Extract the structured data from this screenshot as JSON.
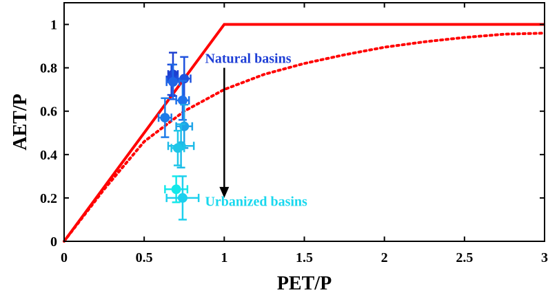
{
  "chart_data": {
    "type": "scatter",
    "title": "",
    "xlabel": "PET/P",
    "ylabel": "AET/P",
    "xlim": [
      0,
      3
    ],
    "ylim": [
      0,
      1.1
    ],
    "grid": false,
    "x_ticks": [
      "0",
      "0.5",
      "1",
      "1.5",
      "2",
      "2.5",
      "3"
    ],
    "y_ticks": [
      "0",
      "0.2",
      "0.4",
      "0.6",
      "0.8",
      "1"
    ],
    "curves": [
      {
        "style": "solid",
        "color": "#ff0000",
        "x": [
          0,
          1,
          3
        ],
        "y": [
          0,
          1,
          1
        ]
      },
      {
        "style": "dotted",
        "color": "#ff0000",
        "x": [
          0,
          0.25,
          0.5,
          0.75,
          1,
          1.25,
          1.5,
          1.75,
          2,
          2.25,
          2.5,
          2.75,
          3
        ],
        "y": [
          0,
          0.24,
          0.46,
          0.6,
          0.7,
          0.77,
          0.82,
          0.86,
          0.895,
          0.92,
          0.94,
          0.955,
          0.96
        ]
      }
    ],
    "points": [
      {
        "x": 0.68,
        "y": 0.77,
        "xerr": 0.03,
        "yerr": 0.1,
        "color": "#1d3fd0"
      },
      {
        "x": 0.67,
        "y": 0.745,
        "xerr": 0.03,
        "yerr": 0.07,
        "color": "#1e48d8"
      },
      {
        "x": 0.75,
        "y": 0.75,
        "xerr": 0.04,
        "yerr": 0.1,
        "color": "#1f52de"
      },
      {
        "x": 0.68,
        "y": 0.735,
        "xerr": 0.04,
        "yerr": 0.08,
        "color": "#1f66e6"
      },
      {
        "x": 0.74,
        "y": 0.65,
        "xerr": 0.04,
        "yerr": 0.09,
        "color": "#1f72ea"
      },
      {
        "x": 0.63,
        "y": 0.57,
        "xerr": 0.04,
        "yerr": 0.09,
        "color": "#1e7be8"
      },
      {
        "x": 0.75,
        "y": 0.53,
        "xerr": 0.05,
        "yerr": 0.1,
        "color": "#1ea3e8"
      },
      {
        "x": 0.73,
        "y": 0.44,
        "xerr": 0.08,
        "yerr": 0.1,
        "color": "#1ebbe8"
      },
      {
        "x": 0.71,
        "y": 0.43,
        "xerr": 0.04,
        "yerr": 0.08,
        "color": "#1ec6e8"
      },
      {
        "x": 0.7,
        "y": 0.24,
        "xerr": 0.07,
        "yerr": 0.06,
        "color": "#14e8ea"
      },
      {
        "x": 0.74,
        "y": 0.2,
        "xerr": 0.1,
        "yerr": 0.1,
        "color": "#1cd0ee"
      }
    ],
    "annotations": [
      {
        "text": "Natural basins",
        "color": "#1f3fd6",
        "x": 0.88,
        "y": 0.845
      },
      {
        "text": "Urbanized basins",
        "color": "#19d8ee",
        "x": 0.88,
        "y": 0.185
      }
    ],
    "arrow": {
      "color": "#000000",
      "x": 1.0,
      "y_from": 0.8,
      "y_to": 0.2
    }
  }
}
